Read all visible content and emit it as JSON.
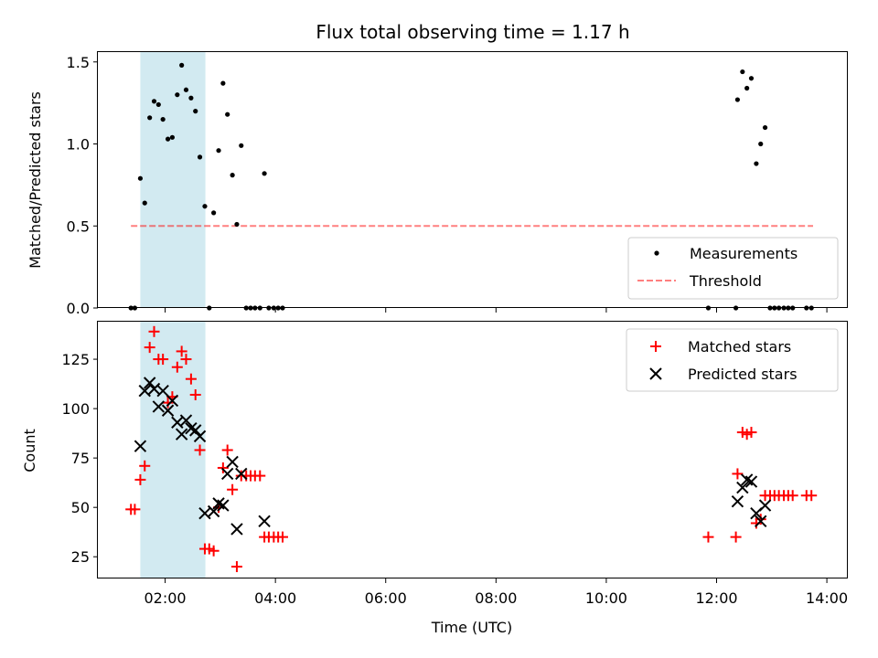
{
  "chart_data": {
    "title": "Flux total observing time = 1.17 h",
    "xlabel": "Time (UTC)",
    "x_tick_labels": [
      "02:00",
      "04:00",
      "06:00",
      "08:00",
      "10:00",
      "12:00",
      "14:00"
    ],
    "x_tick_hours": [
      2,
      4,
      6,
      8,
      10,
      12,
      14
    ],
    "xlim_hours": [
      0.78,
      14.38
    ],
    "shaded_interval_hours": [
      1.55,
      2.73
    ],
    "shade_color": "#add8e6",
    "panels": [
      {
        "type": "scatter",
        "ylabel": "Matched/Predicted stars",
        "ylim": [
          0,
          1.56
        ],
        "y_ticks": [
          0.0,
          0.5,
          1.0,
          1.5
        ],
        "y_tick_labels": [
          "0.0",
          "0.5",
          "1.0",
          "1.5"
        ],
        "legend_position": "lower-right",
        "threshold": {
          "name": "Threshold",
          "value": 0.5,
          "x_from": 1.38,
          "x_to": 13.75,
          "color": "#ff0000",
          "opacity": 0.5
        },
        "series": [
          {
            "name": "Measurements",
            "marker": "dot",
            "color": "#000000",
            "points": [
              [
                1.38,
                0
              ],
              [
                1.45,
                0
              ],
              [
                1.55,
                0.79
              ],
              [
                1.63,
                0.64
              ],
              [
                1.72,
                1.16
              ],
              [
                1.8,
                1.26
              ],
              [
                1.88,
                1.24
              ],
              [
                1.96,
                1.15
              ],
              [
                2.05,
                1.03
              ],
              [
                2.13,
                1.04
              ],
              [
                2.22,
                1.3
              ],
              [
                2.3,
                1.48
              ],
              [
                2.38,
                1.33
              ],
              [
                2.47,
                1.28
              ],
              [
                2.55,
                1.2
              ],
              [
                2.63,
                0.92
              ],
              [
                2.72,
                0.62
              ],
              [
                2.8,
                0
              ],
              [
                2.88,
                0.58
              ],
              [
                2.97,
                0.96
              ],
              [
                3.05,
                1.37
              ],
              [
                3.13,
                1.18
              ],
              [
                3.22,
                0.81
              ],
              [
                3.3,
                0.51
              ],
              [
                3.38,
                0.99
              ],
              [
                3.47,
                0
              ],
              [
                3.55,
                0
              ],
              [
                3.63,
                0
              ],
              [
                3.72,
                0
              ],
              [
                3.8,
                0.82
              ],
              [
                3.88,
                0
              ],
              [
                3.97,
                0
              ],
              [
                4.05,
                0
              ],
              [
                4.13,
                0
              ],
              [
                11.85,
                0
              ],
              [
                12.35,
                0
              ],
              [
                12.38,
                1.27
              ],
              [
                12.47,
                1.44
              ],
              [
                12.55,
                1.34
              ],
              [
                12.63,
                1.4
              ],
              [
                12.72,
                0.88
              ],
              [
                12.8,
                1.0
              ],
              [
                12.88,
                1.1
              ],
              [
                12.97,
                0
              ],
              [
                13.05,
                0
              ],
              [
                13.13,
                0
              ],
              [
                13.22,
                0
              ],
              [
                13.3,
                0
              ],
              [
                13.38,
                0
              ],
              [
                13.63,
                0
              ],
              [
                13.72,
                0
              ]
            ]
          }
        ]
      },
      {
        "type": "scatter",
        "ylabel": "Count",
        "ylim": [
          14,
          144
        ],
        "y_ticks": [
          25,
          50,
          75,
          100,
          125
        ],
        "y_tick_labels": [
          "25",
          "50",
          "75",
          "100",
          "125"
        ],
        "legend_position": "upper-right",
        "series": [
          {
            "name": "Matched stars",
            "marker": "plus",
            "color": "#ff0000",
            "points": [
              [
                1.38,
                49
              ],
              [
                1.45,
                49
              ],
              [
                1.55,
                64
              ],
              [
                1.63,
                71
              ],
              [
                1.72,
                131
              ],
              [
                1.8,
                139
              ],
              [
                1.88,
                125
              ],
              [
                1.96,
                125
              ],
              [
                2.05,
                103
              ],
              [
                2.13,
                106
              ],
              [
                2.22,
                121
              ],
              [
                2.3,
                129
              ],
              [
                2.38,
                125
              ],
              [
                2.47,
                115
              ],
              [
                2.55,
                107
              ],
              [
                2.63,
                79
              ],
              [
                2.72,
                29
              ],
              [
                2.8,
                29
              ],
              [
                2.88,
                28
              ],
              [
                2.97,
                50
              ],
              [
                3.05,
                70
              ],
              [
                3.13,
                79
              ],
              [
                3.22,
                59
              ],
              [
                3.3,
                20
              ],
              [
                3.38,
                66
              ],
              [
                3.47,
                66
              ],
              [
                3.55,
                66
              ],
              [
                3.63,
                66
              ],
              [
                3.72,
                66
              ],
              [
                3.8,
                35
              ],
              [
                3.88,
                35
              ],
              [
                3.97,
                35
              ],
              [
                4.05,
                35
              ],
              [
                4.13,
                35
              ],
              [
                11.85,
                35
              ],
              [
                12.35,
                35
              ],
              [
                12.38,
                67
              ],
              [
                12.47,
                88
              ],
              [
                12.55,
                87
              ],
              [
                12.63,
                88
              ],
              [
                12.72,
                42
              ],
              [
                12.8,
                44
              ],
              [
                12.88,
                56
              ],
              [
                12.97,
                56
              ],
              [
                13.05,
                56
              ],
              [
                13.13,
                56
              ],
              [
                13.22,
                56
              ],
              [
                13.3,
                56
              ],
              [
                13.38,
                56
              ],
              [
                13.63,
                56
              ],
              [
                13.72,
                56
              ]
            ]
          },
          {
            "name": "Predicted stars",
            "marker": "x",
            "color": "#000000",
            "points": [
              [
                1.55,
                81
              ],
              [
                1.63,
                109
              ],
              [
                1.72,
                113
              ],
              [
                1.8,
                110
              ],
              [
                1.88,
                101
              ],
              [
                1.96,
                109
              ],
              [
                2.05,
                99
              ],
              [
                2.13,
                104
              ],
              [
                2.22,
                93
              ],
              [
                2.3,
                87
              ],
              [
                2.38,
                94
              ],
              [
                2.47,
                90
              ],
              [
                2.55,
                89
              ],
              [
                2.63,
                86
              ],
              [
                2.72,
                47
              ],
              [
                2.88,
                48
              ],
              [
                2.97,
                52
              ],
              [
                3.05,
                51
              ],
              [
                3.13,
                67
              ],
              [
                3.22,
                73
              ],
              [
                3.3,
                39
              ],
              [
                3.38,
                67
              ],
              [
                3.8,
                43
              ],
              [
                12.38,
                53
              ],
              [
                12.47,
                60
              ],
              [
                12.55,
                64
              ],
              [
                12.63,
                63
              ],
              [
                12.72,
                47
              ],
              [
                12.8,
                43
              ],
              [
                12.88,
                51
              ]
            ]
          }
        ]
      }
    ]
  }
}
